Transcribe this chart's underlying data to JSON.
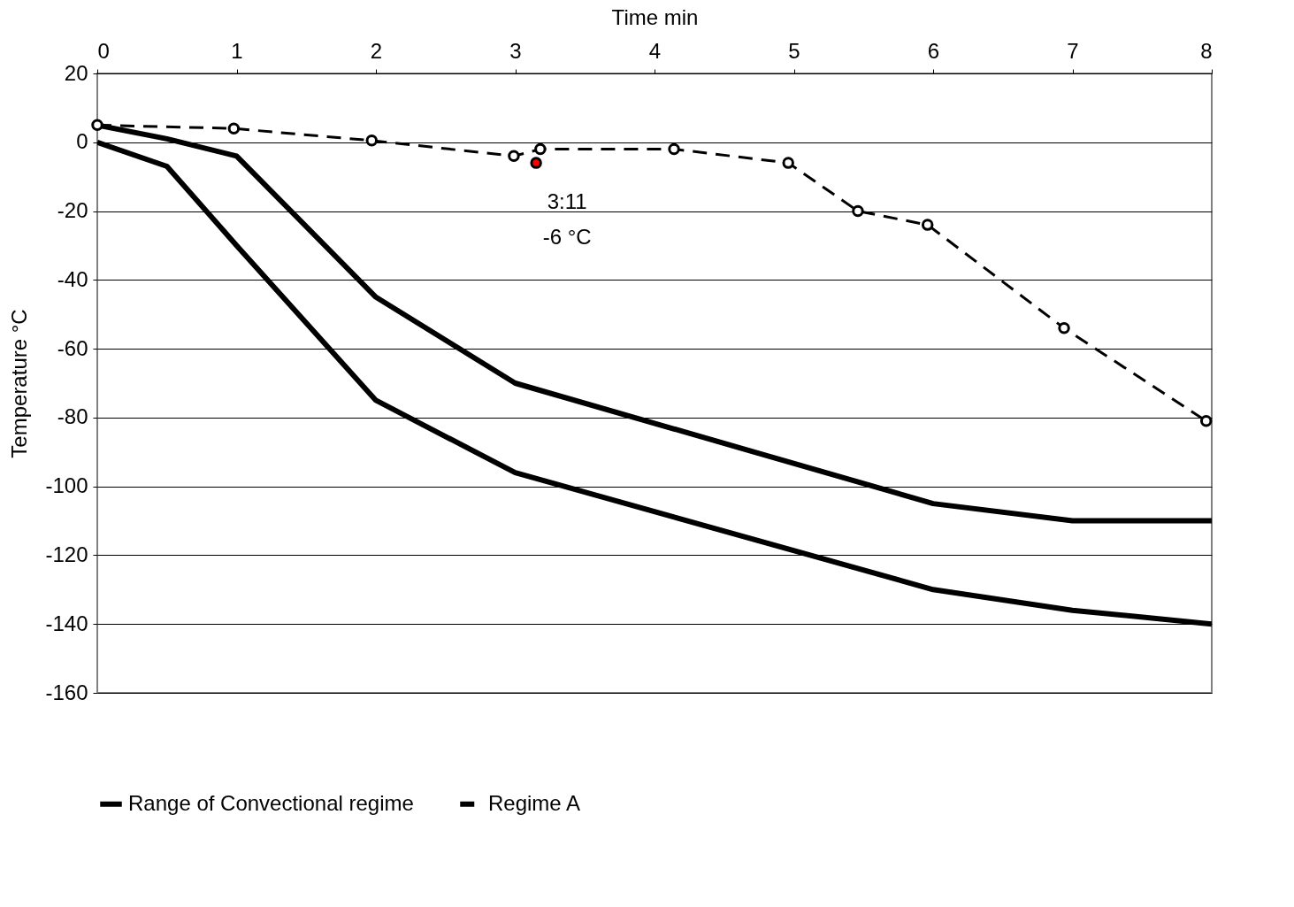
{
  "chart_data": {
    "type": "line",
    "xlabel": "Time min",
    "ylabel": "Temperature °C",
    "xlim": [
      0,
      8
    ],
    "xticks": [
      0,
      1,
      2,
      3,
      4,
      5,
      6,
      7,
      8
    ],
    "ylim": [
      -160,
      20
    ],
    "yticks": [
      -160,
      -140,
      -120,
      -100,
      -80,
      -60,
      -40,
      -20,
      0,
      20
    ],
    "grid": "y",
    "legend": "bottom",
    "series": [
      {
        "name": "Range of Convectional regime",
        "color": "#000000",
        "line_style": "solid",
        "marker": "none",
        "x": [
          0,
          0.5,
          1,
          2,
          3,
          6,
          7,
          8
        ],
        "values": [
          5,
          1,
          -4,
          -45,
          -70,
          -105,
          -110,
          -110
        ]
      },
      {
        "color": "#000000",
        "line_style": "solid",
        "marker": "none",
        "x": [
          0,
          0.5,
          1,
          2,
          3,
          6,
          7,
          8
        ],
        "values": [
          0,
          -7,
          -30,
          -75,
          -96,
          -130,
          -136,
          -140
        ]
      },
      {
        "name": "Regime A",
        "color": "#000000",
        "line_style": "dashed",
        "marker": "circle",
        "x": [
          0,
          0.98,
          1.97,
          2.99,
          3.18,
          4.14,
          4.96,
          5.46,
          5.96,
          6.94,
          7.96
        ],
        "values": [
          5,
          4,
          0.5,
          -4,
          -2,
          -2,
          -6,
          -20,
          -24,
          -54,
          -81
        ]
      },
      {
        "type": "scatter",
        "color": "#ff0000",
        "marker": "circle",
        "x": [
          3.15
        ],
        "values": [
          -6
        ]
      }
    ],
    "annotations": [
      {
        "text": "3:11",
        "x": 3.15,
        "y": -6
      },
      {
        "text": "-6 °C",
        "x": 3.15,
        "y": -6
      }
    ]
  }
}
